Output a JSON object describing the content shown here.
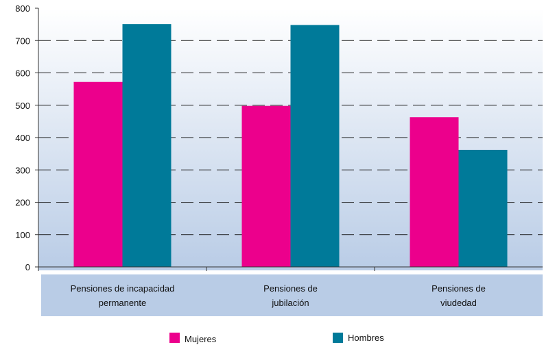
{
  "chart_data": {
    "type": "bar",
    "title": "",
    "xlabel": "",
    "ylabel": "",
    "categories": [
      [
        "Pensiones de incapacidad",
        "permanente"
      ],
      [
        "Pensiones de",
        "jubilación"
      ],
      [
        "Pensiones de",
        "viudedad"
      ]
    ],
    "series": [
      {
        "name": "Mujeres",
        "color": "#ec008c",
        "values": [
          572,
          498,
          463
        ]
      },
      {
        "name": "Hombres",
        "color": "#007a99",
        "values": [
          751,
          748,
          362
        ]
      }
    ],
    "ylim": [
      0,
      800
    ],
    "yticks": [
      0,
      100,
      200,
      300,
      400,
      500,
      600,
      700,
      800
    ],
    "grid": "dashed-horizontal",
    "legend_position": "bottom"
  },
  "colors": {
    "plot_background_top": "#ffffff",
    "plot_background_bottom": "#b9cce6",
    "category_band": "#b9cce6",
    "grid": "#1a1a1a",
    "axis": "#333333"
  }
}
